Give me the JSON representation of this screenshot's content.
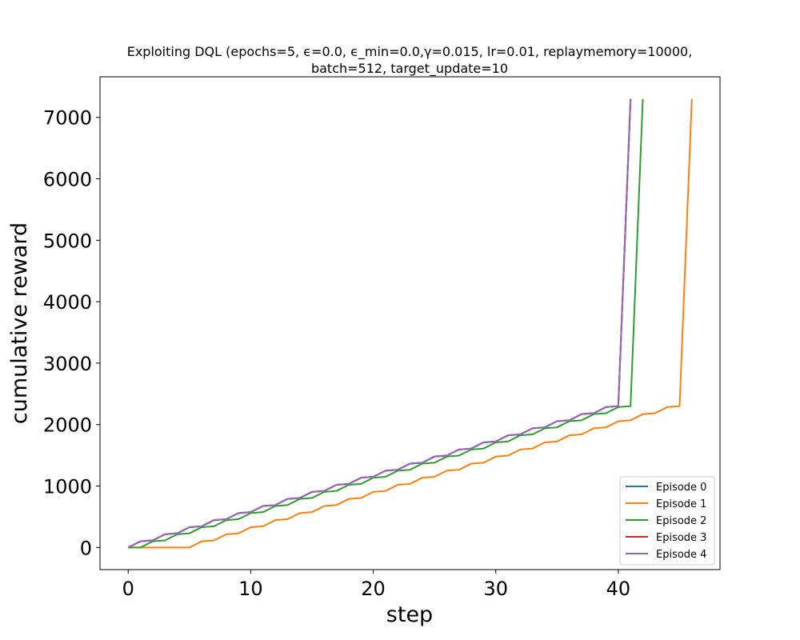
{
  "chart_data": {
    "type": "line",
    "title_lines": [
      "Exploiting DQL (epochs=5, ϵ=0.0, ϵ_min=0.0,γ=0.015, lr=0.01, replaymemory=10000,",
      "batch=512, target_update=10"
    ],
    "xlabel": "step",
    "ylabel": "cumulative reward",
    "xlim": [
      -2.3,
      48.3
    ],
    "ylim": [
      -360,
      7660
    ],
    "xticks": [
      0,
      10,
      20,
      30,
      40
    ],
    "yticks": [
      0,
      1000,
      2000,
      3000,
      4000,
      5000,
      6000,
      7000
    ],
    "grid": false,
    "legend_position": "lower-right",
    "series": [
      {
        "name": "Episode 0",
        "color": "#1f77b4",
        "x": [
          0,
          1,
          2,
          3,
          4,
          5,
          6,
          7,
          8,
          9,
          10,
          11,
          12,
          13,
          14,
          15,
          16,
          17,
          18,
          19,
          20,
          21,
          22,
          23,
          24,
          25,
          26,
          27,
          28,
          29,
          30,
          31,
          32,
          33,
          34,
          35,
          36,
          37,
          38,
          39,
          40,
          41
        ],
        "y": [
          0,
          100,
          115,
          215,
          230,
          330,
          345,
          445,
          460,
          560,
          575,
          675,
          690,
          790,
          805,
          905,
          920,
          1020,
          1035,
          1135,
          1150,
          1250,
          1265,
          1365,
          1380,
          1480,
          1495,
          1595,
          1610,
          1710,
          1725,
          1825,
          1840,
          1940,
          1955,
          2055,
          2070,
          2170,
          2185,
          2285,
          2300,
          7300
        ]
      },
      {
        "name": "Episode 1",
        "color": "#ff7f0e",
        "x": [
          0,
          1,
          2,
          3,
          4,
          5,
          6,
          7,
          8,
          9,
          10,
          11,
          12,
          13,
          14,
          15,
          16,
          17,
          18,
          19,
          20,
          21,
          22,
          23,
          24,
          25,
          26,
          27,
          28,
          29,
          30,
          31,
          32,
          33,
          34,
          35,
          36,
          37,
          38,
          39,
          40,
          41,
          42,
          43,
          44,
          45,
          46
        ],
        "y": [
          0,
          0,
          0,
          0,
          0,
          0,
          100,
          115,
          215,
          230,
          330,
          345,
          445,
          460,
          560,
          575,
          675,
          690,
          790,
          805,
          905,
          920,
          1020,
          1035,
          1135,
          1150,
          1250,
          1265,
          1365,
          1380,
          1480,
          1495,
          1595,
          1610,
          1710,
          1725,
          1825,
          1840,
          1940,
          1955,
          2055,
          2070,
          2170,
          2185,
          2285,
          2300,
          7300
        ]
      },
      {
        "name": "Episode 2",
        "color": "#2ca02c",
        "x": [
          0,
          1,
          2,
          3,
          4,
          5,
          6,
          7,
          8,
          9,
          10,
          11,
          12,
          13,
          14,
          15,
          16,
          17,
          18,
          19,
          20,
          21,
          22,
          23,
          24,
          25,
          26,
          27,
          28,
          29,
          30,
          31,
          32,
          33,
          34,
          35,
          36,
          37,
          38,
          39,
          40,
          41,
          42
        ],
        "y": [
          0,
          0,
          100,
          115,
          215,
          230,
          330,
          345,
          445,
          460,
          560,
          575,
          675,
          690,
          790,
          805,
          905,
          920,
          1020,
          1035,
          1135,
          1150,
          1250,
          1265,
          1365,
          1380,
          1480,
          1495,
          1595,
          1610,
          1710,
          1725,
          1825,
          1840,
          1940,
          1955,
          2055,
          2070,
          2170,
          2185,
          2285,
          2300,
          7300
        ]
      },
      {
        "name": "Episode 3",
        "color": "#d62728",
        "x": [
          0,
          1,
          2,
          3,
          4,
          5,
          6,
          7,
          8,
          9,
          10,
          11,
          12,
          13,
          14,
          15,
          16,
          17,
          18,
          19,
          20,
          21,
          22,
          23,
          24,
          25,
          26,
          27,
          28,
          29,
          30,
          31,
          32,
          33,
          34,
          35,
          36,
          37,
          38,
          39,
          40,
          41
        ],
        "y": [
          0,
          100,
          115,
          215,
          230,
          330,
          345,
          445,
          460,
          560,
          575,
          675,
          690,
          790,
          805,
          905,
          920,
          1020,
          1035,
          1135,
          1150,
          1250,
          1265,
          1365,
          1380,
          1480,
          1495,
          1595,
          1610,
          1710,
          1725,
          1825,
          1840,
          1940,
          1955,
          2055,
          2070,
          2170,
          2185,
          2285,
          2300,
          7300
        ]
      },
      {
        "name": "Episode 4",
        "color": "#9467bd",
        "x": [
          0,
          1,
          2,
          3,
          4,
          5,
          6,
          7,
          8,
          9,
          10,
          11,
          12,
          13,
          14,
          15,
          16,
          17,
          18,
          19,
          20,
          21,
          22,
          23,
          24,
          25,
          26,
          27,
          28,
          29,
          30,
          31,
          32,
          33,
          34,
          35,
          36,
          37,
          38,
          39,
          40,
          41
        ],
        "y": [
          0,
          100,
          115,
          215,
          230,
          330,
          345,
          445,
          460,
          560,
          575,
          675,
          690,
          790,
          805,
          905,
          920,
          1020,
          1035,
          1135,
          1150,
          1250,
          1265,
          1365,
          1380,
          1480,
          1495,
          1595,
          1610,
          1710,
          1725,
          1825,
          1840,
          1940,
          1955,
          2055,
          2070,
          2170,
          2185,
          2285,
          2300,
          7300
        ]
      }
    ]
  }
}
